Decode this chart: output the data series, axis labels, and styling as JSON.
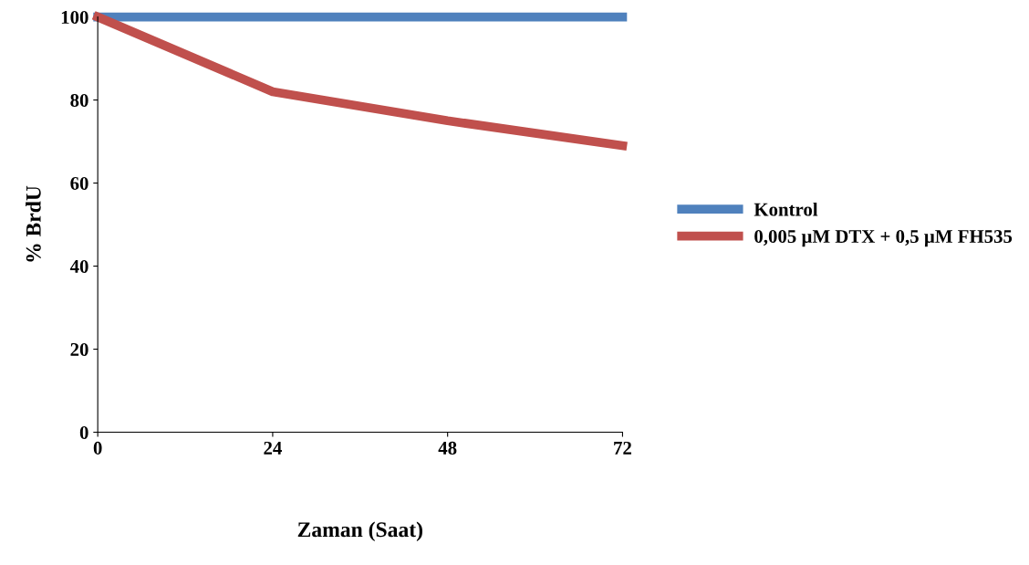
{
  "chart_data": {
    "type": "line",
    "xlabel": "Zaman (Saat)",
    "ylabel": "% BrdU",
    "x": [
      0,
      24,
      48,
      72
    ],
    "series": [
      {
        "name": "Kontrol",
        "color": "#4f81bd",
        "values": [
          100,
          100,
          100,
          100
        ]
      },
      {
        "name": "0,005 µM DTX + 0,5 µM FH535",
        "color": "#c0504d",
        "values": [
          100,
          82,
          75,
          69
        ]
      }
    ],
    "xlim": [
      0,
      72
    ],
    "xticks": [
      0,
      24,
      48,
      72
    ],
    "ylim": [
      0,
      100
    ],
    "yticks": [
      0,
      20,
      40,
      60,
      80,
      100
    ],
    "grid": false,
    "legend": "right",
    "marker": "none",
    "line_style": "solid"
  }
}
